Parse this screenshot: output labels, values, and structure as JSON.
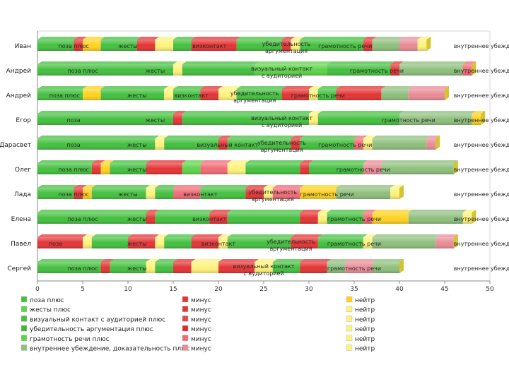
{
  "chart_data": {
    "type": "bar",
    "orientation": "horizontal",
    "stacked": true,
    "title": "",
    "xlabel": "",
    "ylabel": "",
    "xlim": [
      0,
      50
    ],
    "x_ticks": [
      "0",
      "5",
      "10",
      "15",
      "20",
      "25",
      "30",
      "35",
      "40",
      "45",
      "50"
    ],
    "grid": false,
    "colors": {
      "plus": "#44c03f",
      "minus": "#e43434",
      "neutral": "#ffd21e",
      "neutral_light": "#fff27a",
      "plus_mid": "#5cd448",
      "plus_gray": "#8ebf7c",
      "minus_light": "#f06a74",
      "minus_pale": "#e98c96"
    },
    "legend": {
      "position": "bottom",
      "columns": [
        [
          {
            "label": "поза плюс",
            "color": "#44c03f"
          },
          {
            "label": "жесты плюс",
            "color": "#5cd448"
          },
          {
            "label": "визуальный контакт с аудиторией плюс",
            "color": "#44c03f"
          },
          {
            "label": "убедительность аргументация плюс",
            "color": "#3fb832"
          },
          {
            "label": "грамотность речи плюс",
            "color": "#5cd448"
          },
          {
            "label": "внутреннее убеждение, доказательность плюс",
            "color": "#8ebf7c"
          }
        ],
        [
          {
            "label": "минус",
            "color": "#e43434"
          },
          {
            "label": "минус",
            "color": "#e43434"
          },
          {
            "label": "минус",
            "color": "#e04a4a"
          },
          {
            "label": "минус",
            "color": "#e02a2a"
          },
          {
            "label": "минус",
            "color": "#f06a74"
          },
          {
            "label": "минус",
            "color": "#e98c96"
          }
        ],
        [
          {
            "label": "нейтр",
            "color": "#ffd21e"
          },
          {
            "label": "нейтр",
            "color": "#fff27a"
          },
          {
            "label": "нейтр",
            "color": "#fff27a"
          },
          {
            "label": "нейтр",
            "color": "#fff27a"
          },
          {
            "label": "нейтр",
            "color": "#fff27a"
          },
          {
            "label": "нейтр",
            "color": "#fff27a"
          }
        ]
      ]
    },
    "rows": [
      {
        "name": "Иван",
        "segments": [
          [
            "plus",
            4
          ],
          [
            "minus",
            1
          ],
          [
            "neutral",
            2
          ],
          [
            "plus",
            4
          ],
          [
            "minus",
            2
          ],
          [
            "neutral_light",
            2
          ],
          [
            "plus",
            2
          ],
          [
            "minus",
            5
          ],
          [
            "plus",
            5
          ],
          [
            "minus",
            1
          ],
          [
            "neutral_light",
            1
          ],
          [
            "plus",
            7
          ],
          [
            "minus",
            1
          ],
          [
            "plus_gray",
            3
          ],
          [
            "minus_pale",
            2
          ],
          [
            "neutral_light",
            1
          ]
        ],
        "labels": [
          [
            "поза плюс",
            4
          ],
          [
            "жесты",
            10
          ],
          [
            "визконтакт",
            19
          ],
          [
            "убедительность аргументация",
            27.5
          ],
          [
            "грамотность речи",
            34
          ],
          [
            "внутреннее убеждение, доказательность",
            46
          ]
        ]
      },
      {
        "name": "Андрей",
        "segments": [
          [
            "plus",
            15
          ],
          [
            "neutral_light",
            1
          ],
          [
            "plus",
            8
          ],
          [
            "plus_mid",
            8
          ],
          [
            "plus",
            7
          ],
          [
            "minus",
            1
          ],
          [
            "plus_gray",
            7
          ],
          [
            "minus_light",
            1
          ]
        ],
        "labels": [
          [
            "поза плюс",
            5
          ],
          [
            "жесты",
            13
          ],
          [
            "визуальный контакт с аудиторией",
            27
          ],
          [
            "грамотность речи",
            37.5
          ],
          [
            "внутреннее убеждение, доказательность",
            46
          ]
        ]
      },
      {
        "name": "Андрей",
        "segments": [
          [
            "plus",
            5
          ],
          [
            "neutral",
            2
          ],
          [
            "plus",
            7
          ],
          [
            "neutral_light",
            1
          ],
          [
            "plus",
            3
          ],
          [
            "minus",
            2
          ],
          [
            "neutral_light",
            2
          ],
          [
            "plus",
            2
          ],
          [
            "plus",
            3
          ],
          [
            "minus",
            3
          ],
          [
            "neutral_light",
            1
          ],
          [
            "plus",
            2
          ],
          [
            "minus",
            5
          ],
          [
            "plus_gray",
            3
          ],
          [
            "minus_pale",
            4
          ]
        ],
        "labels": [
          [
            "поза плюс",
            3
          ],
          [
            "жесты",
            11
          ],
          [
            "визконтакт",
            17
          ],
          [
            "убедительность аргументация",
            24
          ],
          [
            "грамотность речи",
            31
          ],
          [
            "внутреннее убеждение, доказательность",
            46
          ]
        ]
      },
      {
        "name": "Егор",
        "segments": [
          [
            "plus",
            15
          ],
          [
            "minus",
            1
          ],
          [
            "plus",
            14
          ],
          [
            "neutral_light",
            1
          ],
          [
            "plus",
            9
          ],
          [
            "plus_gray",
            8
          ],
          [
            "neutral",
            1
          ]
        ],
        "labels": [
          [
            "поза",
            4
          ],
          [
            "жесты",
            13
          ],
          [
            "визуальный контакт с аудиторией",
            27
          ],
          [
            "грамотность речи",
            41
          ],
          [
            "внутреннее убеждение, доказательность",
            46
          ]
        ]
      },
      {
        "name": "Дарасвет",
        "segments": [
          [
            "plus",
            13
          ],
          [
            "neutral_light",
            1
          ],
          [
            "plus",
            6
          ],
          [
            "minus",
            1
          ],
          [
            "plus",
            7
          ],
          [
            "minus",
            1
          ],
          [
            "plus",
            6
          ],
          [
            "minus_light",
            1
          ],
          [
            "neutral_light",
            1
          ],
          [
            "plus_gray",
            6
          ],
          [
            "minus_pale",
            1
          ]
        ],
        "labels": [
          [
            "поза",
            4
          ],
          [
            "жесты",
            11
          ],
          [
            "визуальный контакт",
            21
          ],
          [
            "убедительность аргументация",
            27
          ],
          [
            "грамотность речи",
            34
          ],
          [
            "внутреннее убеждение, доказательность",
            46
          ]
        ]
      },
      {
        "name": "Олег",
        "segments": [
          [
            "plus",
            6
          ],
          [
            "minus",
            1
          ],
          [
            "neutral",
            1
          ],
          [
            "plus",
            4
          ],
          [
            "minus",
            4
          ],
          [
            "plus_mid",
            2
          ],
          [
            "minus_light",
            3
          ],
          [
            "neutral_light",
            2
          ],
          [
            "plus",
            6
          ],
          [
            "minus",
            1
          ],
          [
            "plus",
            6
          ],
          [
            "minus_pale",
            2
          ],
          [
            "plus_gray",
            8
          ]
        ],
        "labels": [
          [
            "поза плюс",
            4
          ],
          [
            "жесты",
            11
          ],
          [
            "грамотность речи",
            36
          ],
          [
            "внутреннее убеждение, доказательность",
            46
          ]
        ]
      },
      {
        "name": "Лада",
        "segments": [
          [
            "plus",
            4
          ],
          [
            "minus",
            1
          ],
          [
            "neutral",
            1
          ],
          [
            "plus",
            6
          ],
          [
            "neutral_light",
            1
          ],
          [
            "plus",
            2
          ],
          [
            "minus_light",
            3
          ],
          [
            "plus",
            5
          ],
          [
            "minus",
            2
          ],
          [
            "neutral_light",
            1
          ],
          [
            "minus_light",
            3
          ],
          [
            "neutral",
            4
          ],
          [
            "plus_gray",
            6
          ],
          [
            "neutral_light",
            1
          ]
        ],
        "labels": [
          [
            "поза плюс",
            4
          ],
          [
            "жесты",
            10
          ],
          [
            "визконтакт",
            18
          ],
          [
            "убедительность аргументация",
            26
          ],
          [
            "грамотность речи",
            32
          ],
          [
            "внутреннее убеждение, доказательность",
            46
          ]
        ]
      },
      {
        "name": "Елена",
        "segments": [
          [
            "plus",
            12
          ],
          [
            "minus",
            1
          ],
          [
            "plus",
            6
          ],
          [
            "minus",
            2
          ],
          [
            "plus",
            8
          ],
          [
            "minus",
            2
          ],
          [
            "neutral_light",
            1
          ],
          [
            "plus",
            4
          ],
          [
            "minus_light",
            1
          ],
          [
            "neutral",
            4
          ],
          [
            "plus_gray",
            6
          ],
          [
            "neutral_light",
            1
          ]
        ],
        "labels": [
          [
            "поза плюс",
            5
          ],
          [
            "жесты",
            11
          ],
          [
            "визконтакт",
            19
          ],
          [
            "грамотность речи",
            35
          ],
          [
            "внутреннее убеждение, доказательность",
            46
          ]
        ]
      },
      {
        "name": "Павел",
        "segments": [
          [
            "minus",
            5
          ],
          [
            "neutral_light",
            1
          ],
          [
            "plus",
            4
          ],
          [
            "minus",
            3
          ],
          [
            "neutral_light",
            1
          ],
          [
            "plus",
            3
          ],
          [
            "minus",
            3
          ],
          [
            "neutral_light",
            1
          ],
          [
            "plus",
            7
          ],
          [
            "minus",
            3
          ],
          [
            "plus",
            5
          ],
          [
            "neutral_light",
            1
          ],
          [
            "plus_gray",
            7
          ],
          [
            "minus_pale",
            2
          ]
        ],
        "labels": [
          [
            "поза",
            2
          ],
          [
            "жесты",
            11
          ],
          [
            "визконтакт",
            20
          ],
          [
            "убедительность аргументация",
            28
          ],
          [
            "грамотность речи",
            35
          ],
          [
            "внутреннее убеждение, доказательность",
            46
          ]
        ]
      },
      {
        "name": "Сергей",
        "segments": [
          [
            "plus",
            7
          ],
          [
            "minus",
            1
          ],
          [
            "plus",
            4
          ],
          [
            "neutral_light",
            1
          ],
          [
            "plus",
            2
          ],
          [
            "minus",
            2
          ],
          [
            "neutral_light",
            3
          ],
          [
            "minus",
            4
          ],
          [
            "neutral_light",
            2
          ],
          [
            "plus",
            3
          ],
          [
            "minus",
            3
          ],
          [
            "plus_gray",
            2
          ],
          [
            "minus_pale",
            3
          ],
          [
            "plus_gray",
            3
          ]
        ],
        "labels": [
          [
            "поза плюс",
            5
          ],
          [
            "жесты",
            11
          ],
          [
            "визуальный контакт с аудиторией",
            25
          ],
          [
            "грамотность речи",
            35
          ],
          [
            "внутреннее убеждение, доказательность",
            46
          ]
        ]
      }
    ]
  }
}
